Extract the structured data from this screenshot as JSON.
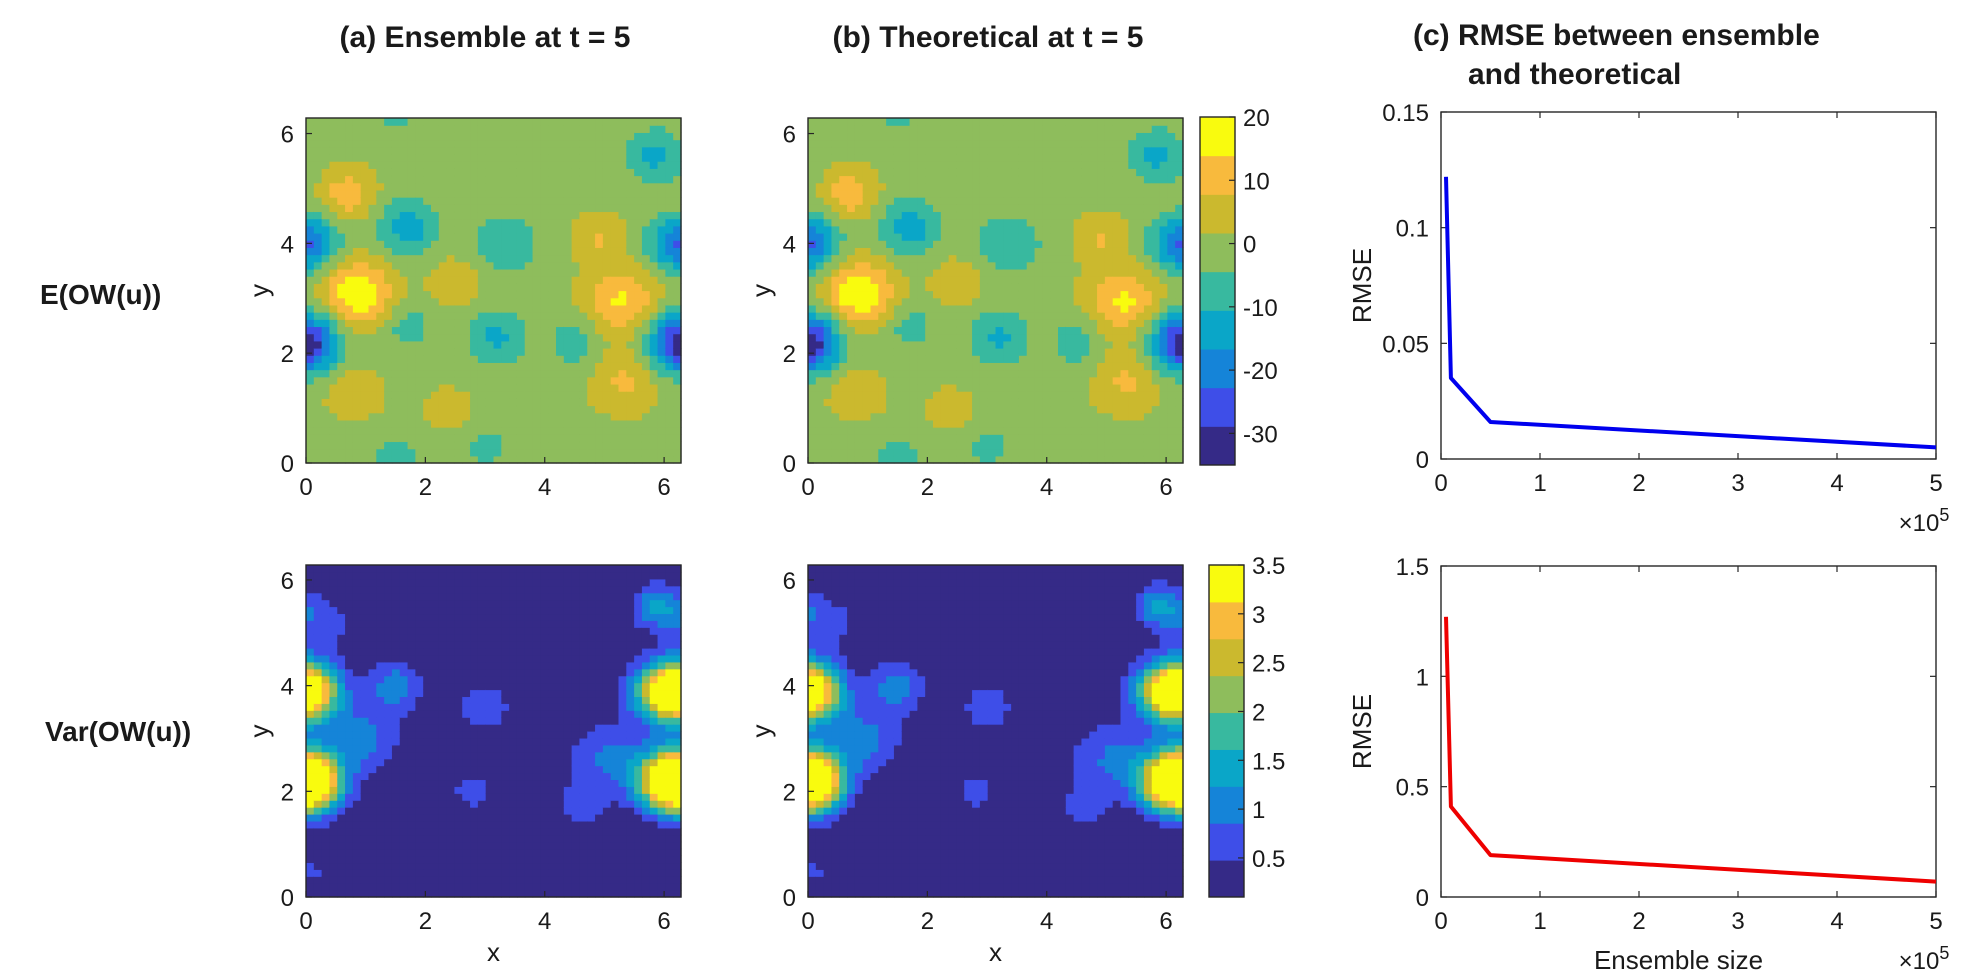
{
  "row_labels": [
    "E(OW(u))",
    "Var(OW(u))"
  ],
  "titles": {
    "a": "(a) Ensemble at t = 5",
    "b": "(b) Theoretical at t = 5",
    "c_line1": "(c) RMSE between ensemble",
    "c_line2": "and theoretical"
  },
  "colors": {
    "blue_line": "#0000ee",
    "red_line": "#ee0000",
    "parula": [
      "#352a87",
      "#3e4ee8",
      "#1584d8",
      "#0aa6c8",
      "#38b99f",
      "#8ebd5c",
      "#cbb92e",
      "#f8ba3d",
      "#f9fb0e"
    ]
  },
  "chart_data": [
    {
      "type": "heatmap",
      "id": "a_mean",
      "title": "(a) Ensemble at t = 5",
      "xlabel": "",
      "ylabel": "y",
      "xlim": [
        0,
        6.283
      ],
      "ylim": [
        0,
        6.283
      ],
      "xticks": [
        "0",
        "2",
        "4",
        "6"
      ],
      "yticks": [
        "0",
        "2",
        "4",
        "6"
      ],
      "clim": [
        -35,
        20
      ]
    },
    {
      "type": "heatmap",
      "id": "b_mean",
      "title": "(b) Theoretical at t = 5",
      "xlabel": "",
      "ylabel": "y",
      "xlim": [
        0,
        6.283
      ],
      "ylim": [
        0,
        6.283
      ],
      "xticks": [
        "0",
        "2",
        "4",
        "6"
      ],
      "yticks": [
        "0",
        "2",
        "4",
        "6"
      ],
      "clim": [
        -35,
        20
      ],
      "colorbar_ticks": [
        "20",
        "10",
        "0",
        "-10",
        "-20",
        "-30"
      ]
    },
    {
      "type": "line",
      "id": "c_mean",
      "ylabel": "RMSE",
      "x": [
        0.05,
        0.1,
        0.5,
        5
      ],
      "values": [
        0.122,
        0.035,
        0.016,
        0.005
      ],
      "xlim": [
        0,
        5
      ],
      "ylim": [
        0,
        0.15
      ],
      "xticks": [
        "0",
        "1",
        "2",
        "3",
        "4",
        "5"
      ],
      "yticks": [
        "0",
        "0.05",
        "0.1",
        "0.15"
      ],
      "x_exponent": "×10",
      "x_exponent_power": "5"
    },
    {
      "type": "heatmap",
      "id": "a_var",
      "xlabel": "x",
      "ylabel": "y",
      "xlim": [
        0,
        6.283
      ],
      "ylim": [
        0,
        6.283
      ],
      "xticks": [
        "0",
        "2",
        "4",
        "6"
      ],
      "yticks": [
        "0",
        "2",
        "4",
        "6"
      ],
      "clim": [
        0.1,
        3.5
      ]
    },
    {
      "type": "heatmap",
      "id": "b_var",
      "xlabel": "x",
      "ylabel": "y",
      "xlim": [
        0,
        6.283
      ],
      "ylim": [
        0,
        6.283
      ],
      "xticks": [
        "0",
        "2",
        "4",
        "6"
      ],
      "yticks": [
        "0",
        "2",
        "4",
        "6"
      ],
      "clim": [
        0.1,
        3.5
      ],
      "colorbar_ticks": [
        "3.5",
        "3",
        "2.5",
        "2",
        "1.5",
        "1",
        "0.5"
      ]
    },
    {
      "type": "line",
      "id": "c_var",
      "xlabel": "Ensemble size",
      "ylabel": "RMSE",
      "x": [
        0.05,
        0.1,
        0.5,
        5
      ],
      "values": [
        1.27,
        0.41,
        0.19,
        0.07
      ],
      "xlim": [
        0,
        5
      ],
      "ylim": [
        0,
        1.5
      ],
      "xticks": [
        "0",
        "1",
        "2",
        "3",
        "4",
        "5"
      ],
      "yticks": [
        "0",
        "0.5",
        "1",
        "1.5"
      ],
      "x_exponent": "×10",
      "x_exponent_power": "5"
    }
  ]
}
